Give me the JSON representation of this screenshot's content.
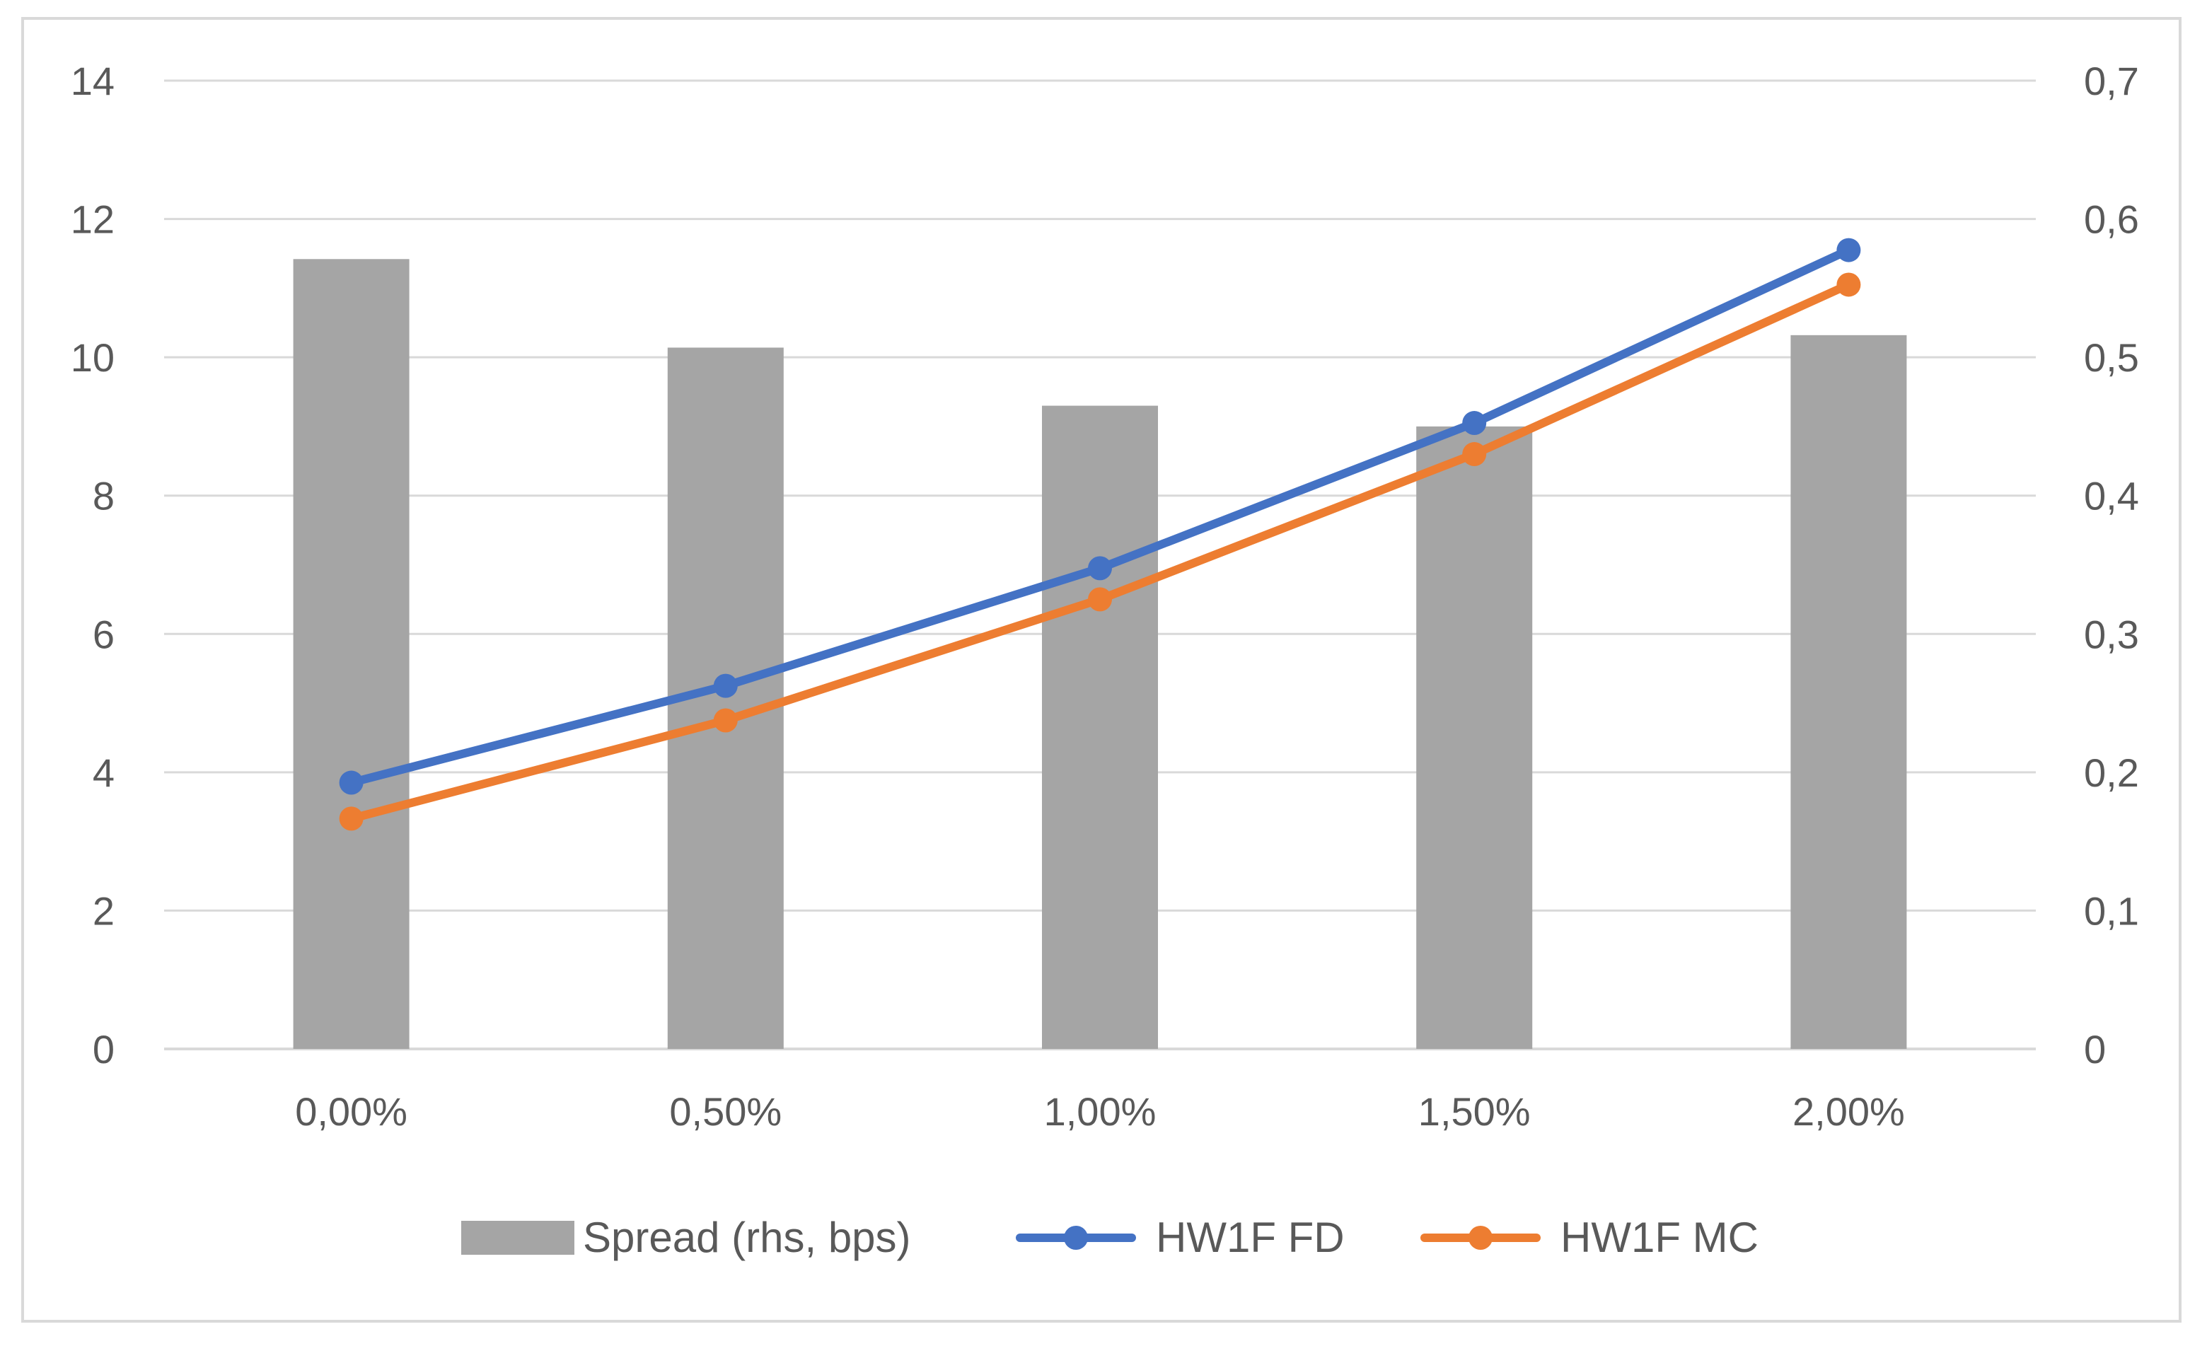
{
  "chart_data": {
    "type": "bar+line",
    "title": "",
    "categories": [
      "0,00%",
      "0,50%",
      "1,00%",
      "1,50%",
      "2,00%"
    ],
    "y_left": {
      "min": 0,
      "max": 14,
      "ticks": [
        "0",
        "2",
        "4",
        "6",
        "8",
        "10",
        "12",
        "14"
      ]
    },
    "y_right": {
      "min": 0,
      "max": 0.7,
      "ticks": [
        "0",
        "0,1",
        "0,2",
        "0,3",
        "0,4",
        "0,5",
        "0,6",
        "0,7"
      ]
    },
    "grid": true,
    "legend_position": "bottom",
    "series": [
      {
        "name": "Spread (rhs, bps)",
        "type": "bar",
        "axis": "right",
        "color": "#a5a5a5",
        "values": [
          0.571,
          0.507,
          0.465,
          0.45,
          0.516
        ]
      },
      {
        "name": "HW1F FD",
        "type": "line",
        "axis": "left",
        "color": "#4472c4",
        "values": [
          3.85,
          5.25,
          6.95,
          9.05,
          11.55
        ]
      },
      {
        "name": "HW1F MC",
        "type": "line",
        "axis": "left",
        "color": "#ed7d31",
        "values": [
          3.33,
          4.75,
          6.5,
          8.6,
          11.05
        ]
      }
    ]
  }
}
